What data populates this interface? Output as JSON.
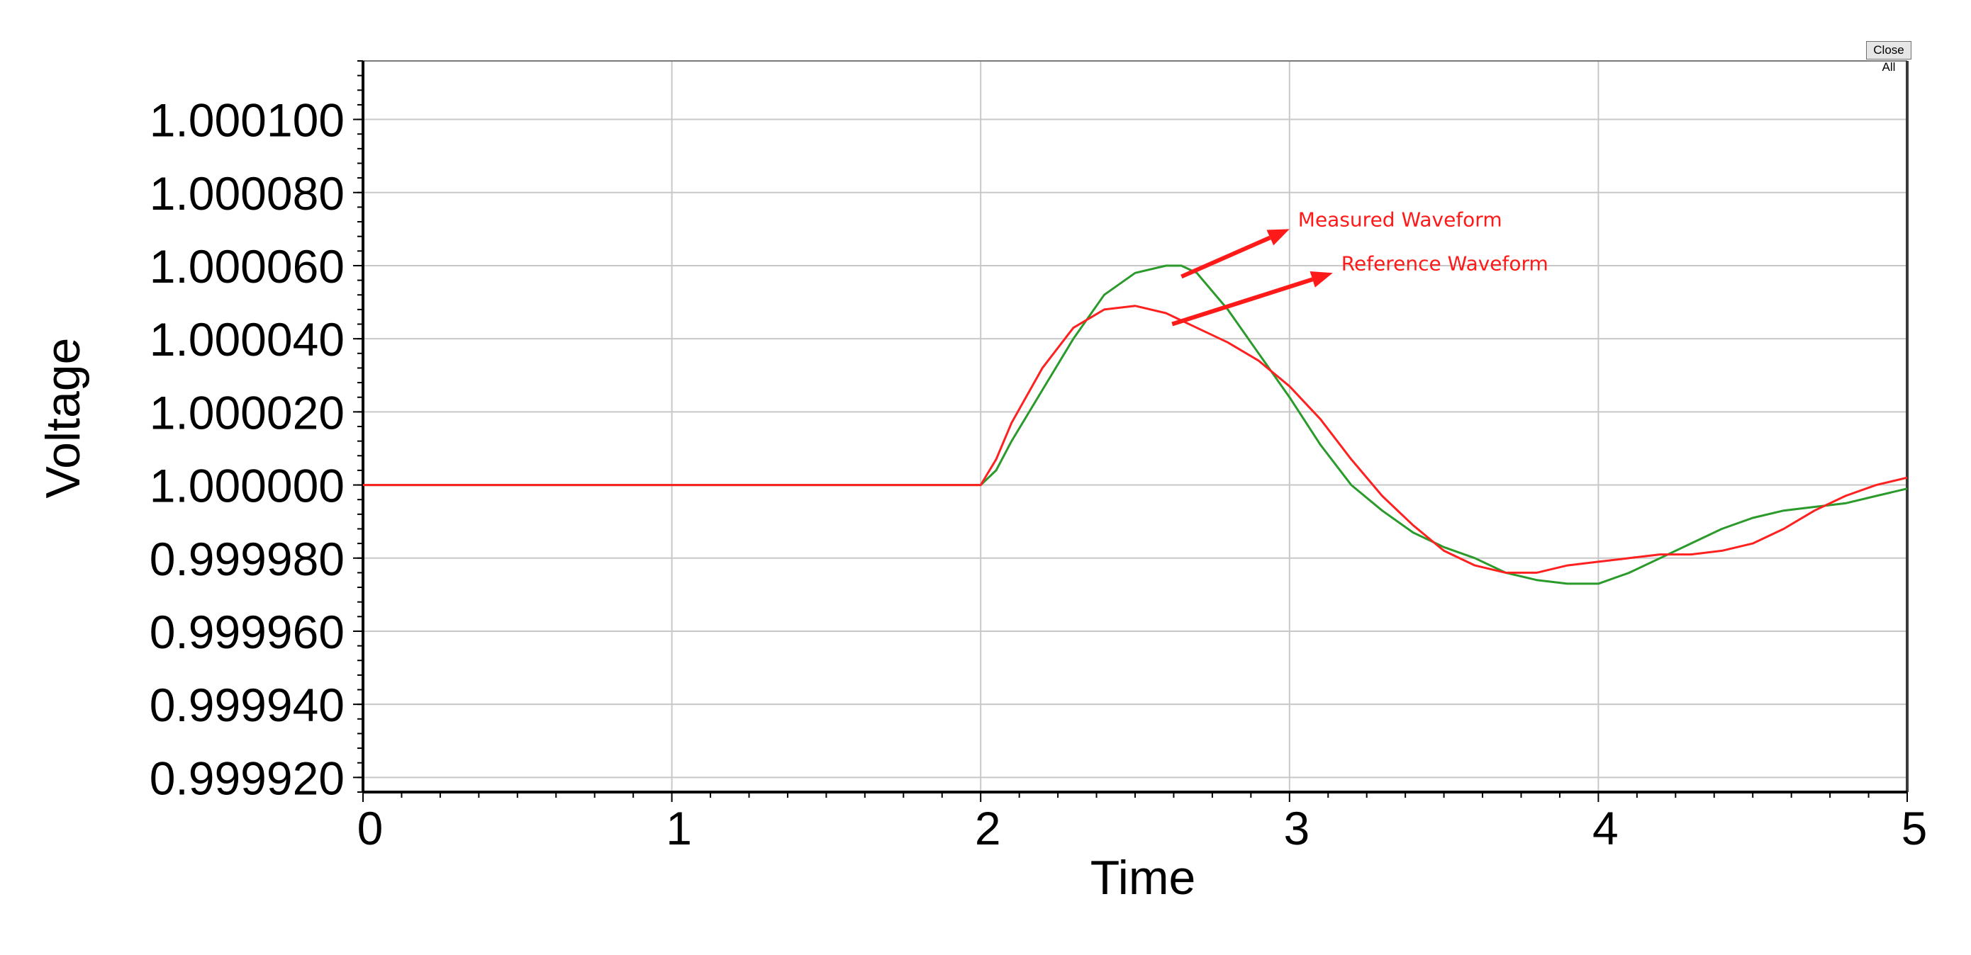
{
  "toolbar": {
    "close_all_label": "Close All"
  },
  "colors": {
    "measured": "#ff2020",
    "reference": "#2a9a2a",
    "annotation": "#ff1a1a",
    "grid": "#c8c8c8",
    "axis": "#000000"
  },
  "chart_data": {
    "type": "line",
    "title": "",
    "xlabel": "Time",
    "ylabel": "Voltage",
    "xlim": [
      0,
      5
    ],
    "ylim": [
      0.999916,
      1.000116
    ],
    "x_ticks": [
      0,
      1,
      2,
      3,
      4,
      5
    ],
    "x_tick_labels": [
      "0",
      "1",
      "2",
      "3",
      "4",
      "5"
    ],
    "y_ticks": [
      0.99992,
      0.99994,
      0.99996,
      0.99998,
      1.0,
      1.00002,
      1.00004,
      1.00006,
      1.00008,
      1.0001
    ],
    "y_tick_labels": [
      "0.999920",
      "0.999940",
      "0.999960",
      "0.999980",
      "1.000000",
      "1.000020",
      "1.000040",
      "1.000060",
      "1.000080",
      "1.000100"
    ],
    "grid": true,
    "series": [
      {
        "name": "Measured Waveform",
        "color": "#ff2020",
        "x": [
          0,
          1,
          2,
          2.05,
          2.1,
          2.2,
          2.3,
          2.4,
          2.5,
          2.6,
          2.7,
          2.8,
          2.9,
          3.0,
          3.1,
          3.2,
          3.3,
          3.4,
          3.5,
          3.6,
          3.7,
          3.8,
          3.9,
          4.0,
          4.1,
          4.2,
          4.3,
          4.4,
          4.5,
          4.6,
          4.7,
          4.8,
          4.9,
          5.0
        ],
        "y": [
          1.0,
          1.0,
          1.0,
          1.000007,
          1.000017,
          1.000032,
          1.000043,
          1.000048,
          1.000049,
          1.000047,
          1.000043,
          1.000039,
          1.000034,
          1.000027,
          1.000018,
          1.000007,
          0.999997,
          0.999989,
          0.999982,
          0.999978,
          0.999976,
          0.999976,
          0.999978,
          0.999979,
          0.99998,
          0.999981,
          0.999981,
          0.999982,
          0.999984,
          0.999988,
          0.999993,
          0.999997,
          1.0,
          1.000002
        ]
      },
      {
        "name": "Reference Waveform",
        "color": "#2a9a2a",
        "x": [
          0,
          1,
          2,
          2.05,
          2.1,
          2.2,
          2.3,
          2.4,
          2.5,
          2.6,
          2.65,
          2.7,
          2.8,
          2.9,
          3.0,
          3.1,
          3.2,
          3.3,
          3.4,
          3.5,
          3.6,
          3.7,
          3.8,
          3.9,
          4.0,
          4.1,
          4.2,
          4.3,
          4.4,
          4.5,
          4.6,
          4.7,
          4.8,
          4.9,
          5.0
        ],
        "y": [
          1.0,
          1.0,
          1.0,
          1.000004,
          1.000012,
          1.000026,
          1.00004,
          1.000052,
          1.000058,
          1.00006,
          1.00006,
          1.000058,
          1.000048,
          1.000036,
          1.000024,
          1.000011,
          1.0,
          0.999993,
          0.999987,
          0.999983,
          0.99998,
          0.999976,
          0.999974,
          0.999973,
          0.999973,
          0.999976,
          0.99998,
          0.999984,
          0.999988,
          0.999991,
          0.999993,
          0.999994,
          0.999995,
          0.999997,
          0.999999
        ]
      }
    ],
    "annotations": [
      {
        "text": "Measured Waveform",
        "from": [
          2.65,
          1.000057
        ],
        "to": [
          3.0,
          1.00007
        ]
      },
      {
        "text": "Reference Waveform",
        "from": [
          2.62,
          1.000044
        ],
        "to": [
          3.14,
          1.000058
        ]
      }
    ]
  }
}
